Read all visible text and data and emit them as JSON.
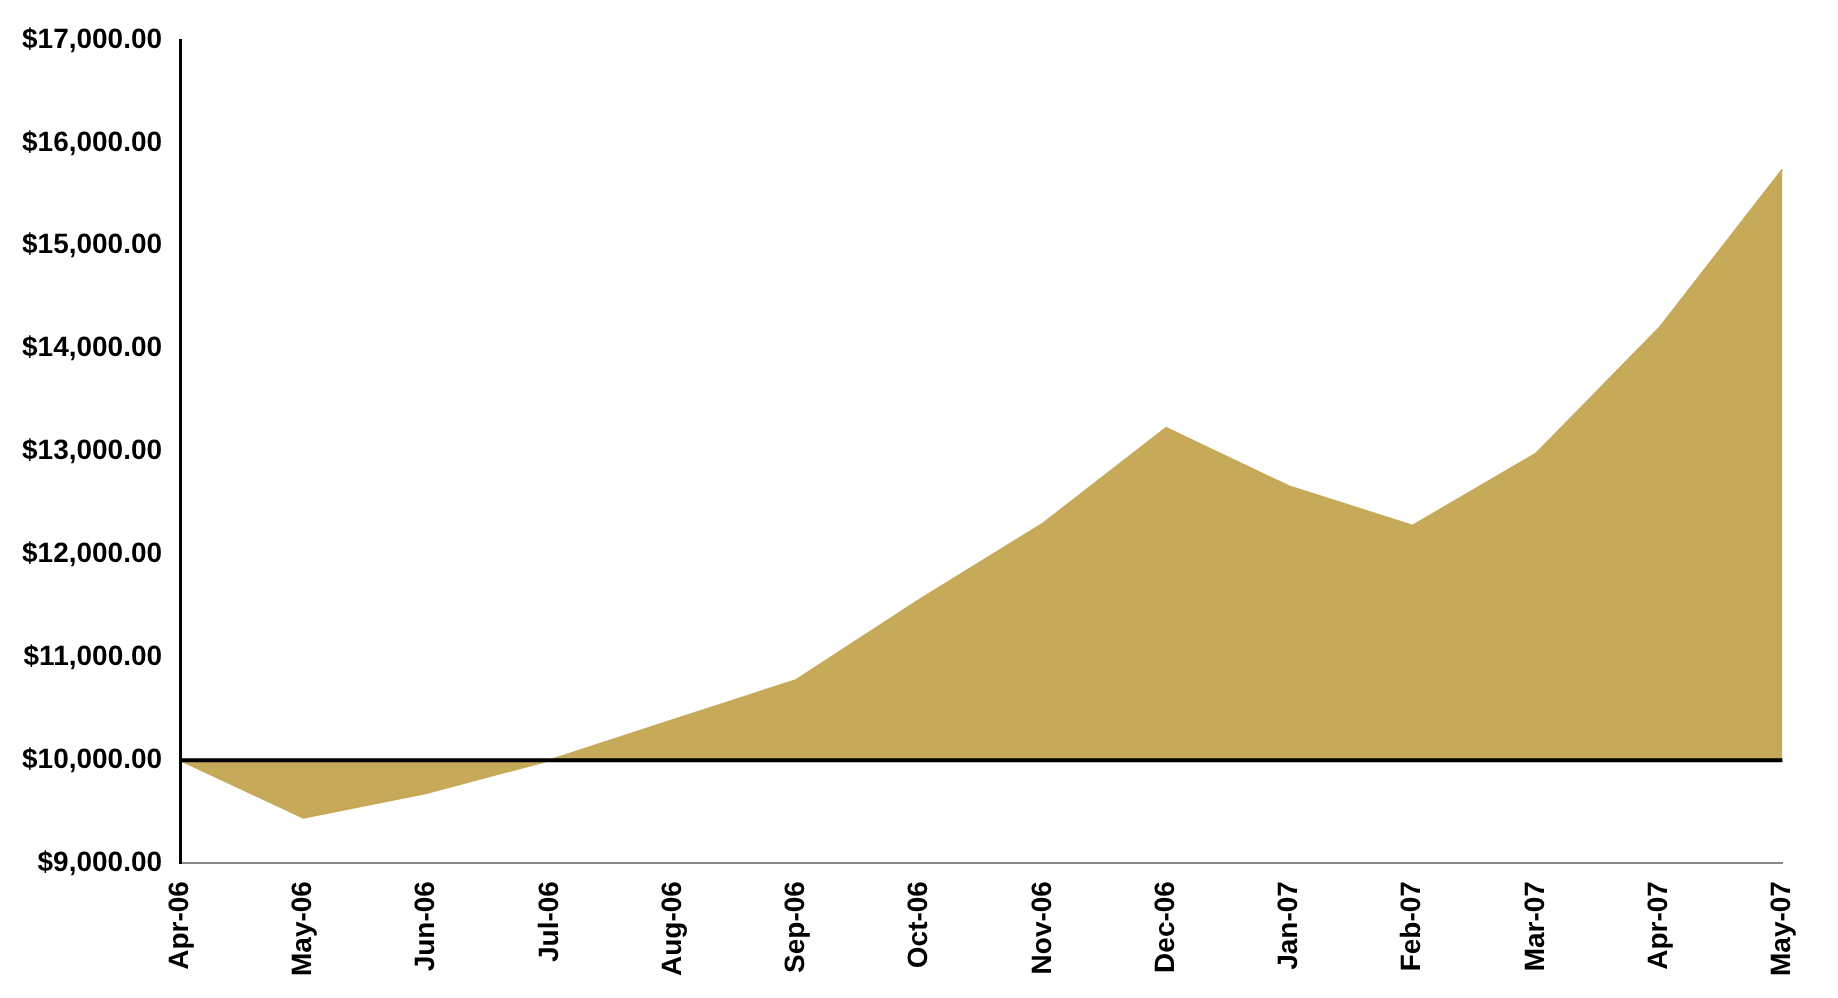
{
  "chart_data": {
    "type": "area",
    "categories": [
      "Apr-06",
      "May-06",
      "Jun-06",
      "Jul-06",
      "Aug-06",
      "Sep-06",
      "Oct-06",
      "Nov-06",
      "Dec-06",
      "Jan-07",
      "Feb-07",
      "Mar-07",
      "Apr-07",
      "May-07"
    ],
    "series": [
      {
        "color": "#c6a959",
        "values": [
          10000,
          9440,
          9680,
          10000,
          10390,
          10780,
          11560,
          12300,
          13230,
          12660,
          12280,
          12980,
          14200,
          15740
        ]
      }
    ],
    "ylim": [
      9000,
      17000
    ],
    "yticks": [
      {
        "value": 9000,
        "label": "$9,000.00"
      },
      {
        "value": 10000,
        "label": "$10,000.00"
      },
      {
        "value": 11000,
        "label": "$11,000.00"
      },
      {
        "value": 12000,
        "label": "$12,000.00"
      },
      {
        "value": 13000,
        "label": "$13,000.00"
      },
      {
        "value": 14000,
        "label": "$14,000.00"
      },
      {
        "value": 15000,
        "label": "$15,000.00"
      },
      {
        "value": 16000,
        "label": "$16,000.00"
      },
      {
        "value": 17000,
        "label": "$17,000.00"
      }
    ],
    "ref_lines": [
      {
        "axis": "y",
        "value": 10000,
        "color": "#000000"
      }
    ],
    "grid": false,
    "legend": false
  }
}
